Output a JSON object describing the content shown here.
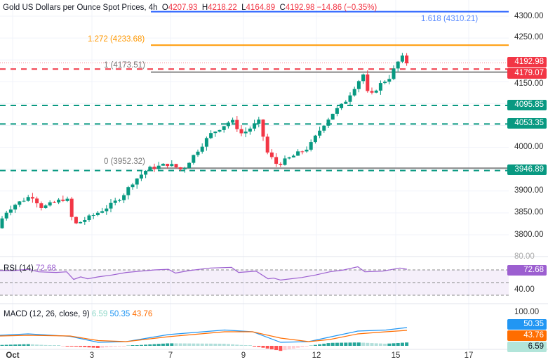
{
  "header": {
    "title": "Gold US Dollars per Ounce Spot Prices, 4h",
    "o_label": "O",
    "o": "4207.93",
    "h_label": "H",
    "h": "4218.22",
    "l_label": "L",
    "l": "4164.89",
    "c_label": "C",
    "c": "4192.98",
    "change": "−14.86 (−0.35%)"
  },
  "fib": {
    "f1618": "1.618 (4310.21)",
    "f1272": "1.272 (4233.68)",
    "f1": "1 (4173.51)",
    "f0": "0 (3952.32)"
  },
  "price_axis": [
    "4300.00",
    "4250.00",
    "4150.00",
    "4000.00",
    "3900.00",
    "3850.00",
    "3800.00"
  ],
  "price_labels": {
    "current": "4192.98",
    "r1": "4179.07",
    "s1": "4095.85",
    "s2": "4053.35",
    "s3": "3946.89"
  },
  "rsi": {
    "title": "RSI (14)",
    "value": "72.68",
    "axis": [
      "80.00",
      "40.00"
    ]
  },
  "macd": {
    "title": "MACD (12, 26, close, 9)",
    "hist": "6.59",
    "macd": "50.35",
    "signal": "43.76",
    "axis": "100.00"
  },
  "time_axis": [
    "Oct",
    "3",
    "7",
    "9",
    "12",
    "15",
    "17"
  ],
  "colors": {
    "up": "#089981",
    "down": "#f23645",
    "blue": "#2962ff",
    "orange": "#ff9800",
    "rsi": "#9c5fd0",
    "macd": "#2196f3",
    "signal": "#ff6d00"
  }
}
